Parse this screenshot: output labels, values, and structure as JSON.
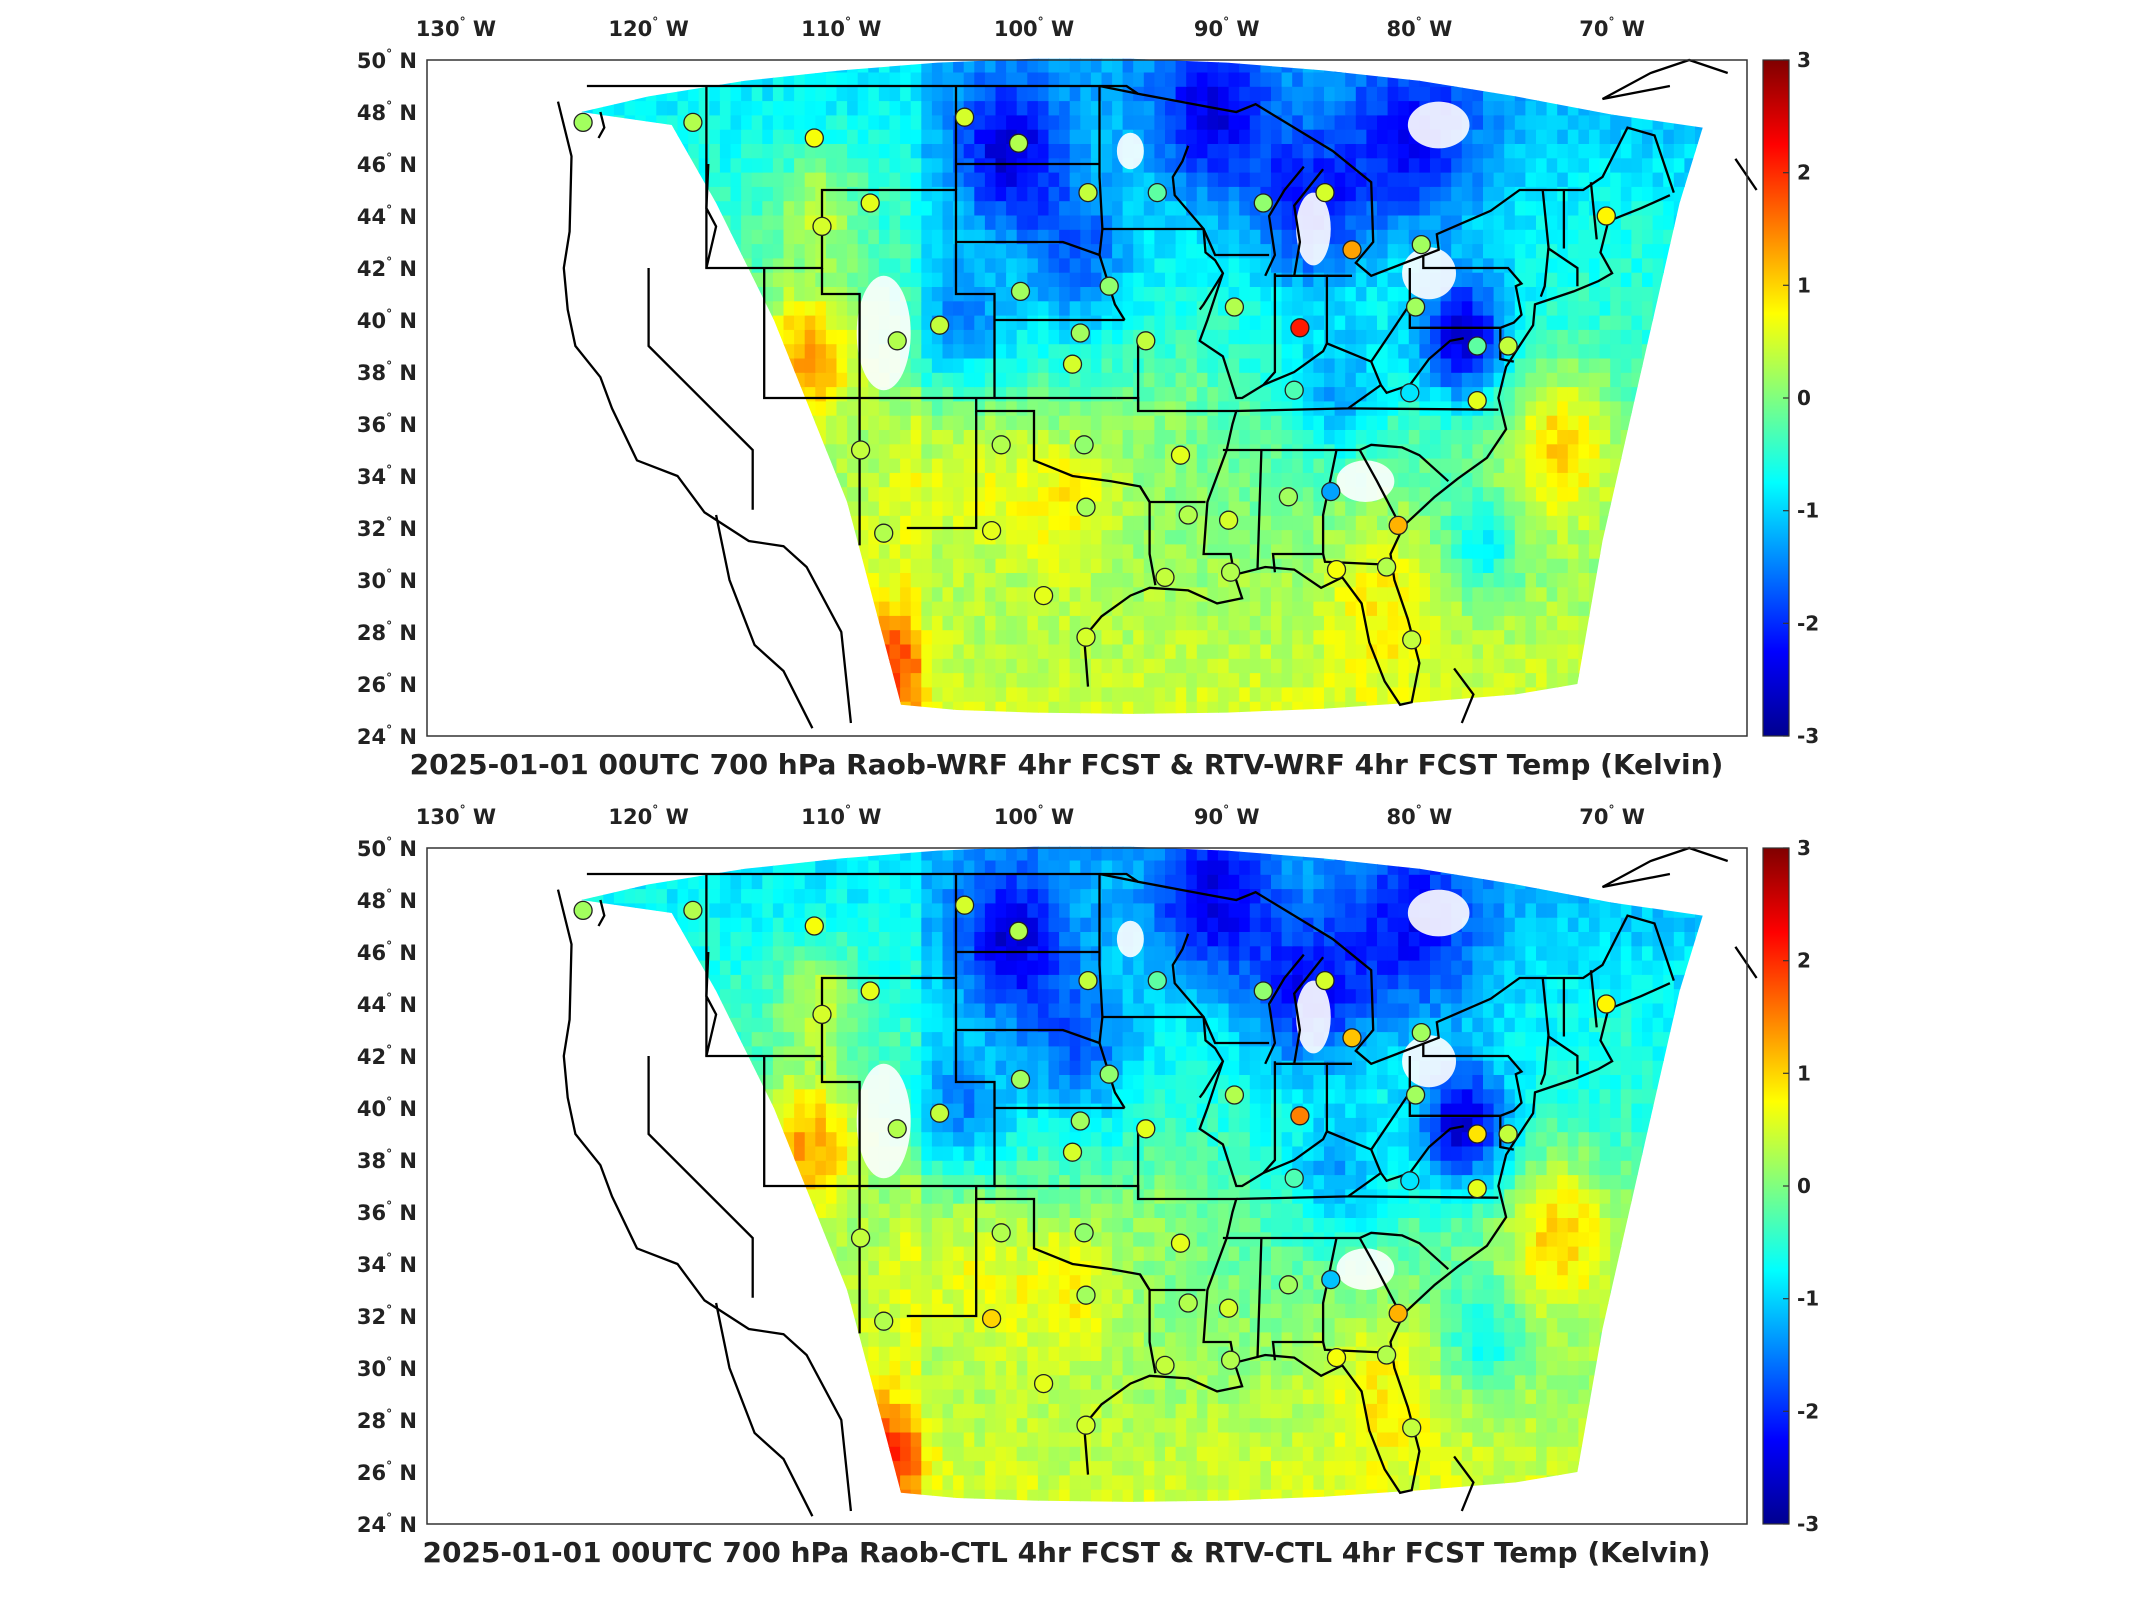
{
  "panels": [
    {
      "title": "2025-01-01 00UTC 700 hPa Raob-WRF 4hr FCST & RTV-WRF 4hr FCST Temp (Kelvin)",
      "stations": [
        {
          "lon": -123.4,
          "lat": 47.6,
          "value": 0.2
        },
        {
          "lon": -117.7,
          "lat": 47.6,
          "value": 0.3
        },
        {
          "lon": -111.4,
          "lat": 47.0,
          "value": 0.7
        },
        {
          "lon": -103.6,
          "lat": 47.8,
          "value": 0.5
        },
        {
          "lon": -100.8,
          "lat": 46.8,
          "value": 0.3
        },
        {
          "lon": -93.6,
          "lat": 44.9,
          "value": -0.2
        },
        {
          "lon": -108.5,
          "lat": 44.5,
          "value": 0.6
        },
        {
          "lon": -97.2,
          "lat": 44.9,
          "value": 0.4
        },
        {
          "lon": -84.9,
          "lat": 44.9,
          "value": 0.5
        },
        {
          "lon": -88.1,
          "lat": 44.5,
          "value": 0.1
        },
        {
          "lon": -83.5,
          "lat": 42.7,
          "value": 1.3
        },
        {
          "lon": -79.9,
          "lat": 42.9,
          "value": 0.2
        },
        {
          "lon": -70.3,
          "lat": 44.0,
          "value": 0.8
        },
        {
          "lon": -111.0,
          "lat": 43.6,
          "value": 0.5
        },
        {
          "lon": -100.7,
          "lat": 41.1,
          "value": 0.2
        },
        {
          "lon": -96.1,
          "lat": 41.3,
          "value": 0.1
        },
        {
          "lon": -89.6,
          "lat": 40.5,
          "value": 0.3
        },
        {
          "lon": -86.2,
          "lat": 39.7,
          "value": 2.1
        },
        {
          "lon": -80.2,
          "lat": 40.5,
          "value": 0.2
        },
        {
          "lon": -77.0,
          "lat": 39.0,
          "value": -0.2
        },
        {
          "lon": -75.4,
          "lat": 39.0,
          "value": 0.4
        },
        {
          "lon": -107.1,
          "lat": 39.2,
          "value": 0.3
        },
        {
          "lon": -104.9,
          "lat": 39.8,
          "value": 0.4
        },
        {
          "lon": -97.6,
          "lat": 39.5,
          "value": 0.2
        },
        {
          "lon": -94.2,
          "lat": 39.2,
          "value": 0.4
        },
        {
          "lon": -98.0,
          "lat": 38.3,
          "value": 0.5
        },
        {
          "lon": -86.5,
          "lat": 37.3,
          "value": -0.3
        },
        {
          "lon": -80.5,
          "lat": 37.2,
          "value": -0.9
        },
        {
          "lon": -77.0,
          "lat": 36.9,
          "value": 0.6
        },
        {
          "lon": -109.0,
          "lat": 35.0,
          "value": 0.4
        },
        {
          "lon": -101.7,
          "lat": 35.2,
          "value": 0.3
        },
        {
          "lon": -97.4,
          "lat": 35.2,
          "value": 0.1
        },
        {
          "lon": -92.4,
          "lat": 34.8,
          "value": 0.6
        },
        {
          "lon": -86.8,
          "lat": 33.2,
          "value": 0.2
        },
        {
          "lon": -84.6,
          "lat": 33.4,
          "value": -1.3
        },
        {
          "lon": -81.1,
          "lat": 32.1,
          "value": 1.2
        },
        {
          "lon": -107.8,
          "lat": 31.8,
          "value": 0.3
        },
        {
          "lon": -102.2,
          "lat": 31.9,
          "value": 0.6
        },
        {
          "lon": -97.3,
          "lat": 32.8,
          "value": 0.2
        },
        {
          "lon": -92.0,
          "lat": 32.5,
          "value": 0.3
        },
        {
          "lon": -89.9,
          "lat": 32.3,
          "value": 0.5
        },
        {
          "lon": -93.2,
          "lat": 30.1,
          "value": 0.4
        },
        {
          "lon": -89.8,
          "lat": 30.3,
          "value": 0.3
        },
        {
          "lon": -84.3,
          "lat": 30.4,
          "value": 0.7
        },
        {
          "lon": -81.7,
          "lat": 30.5,
          "value": 0.3
        },
        {
          "lon": -99.5,
          "lat": 29.4,
          "value": 0.6
        },
        {
          "lon": -97.3,
          "lat": 27.8,
          "value": 0.5
        },
        {
          "lon": -80.4,
          "lat": 27.7,
          "value": 0.4
        }
      ]
    },
    {
      "title": "2025-01-01 00UTC 700 hPa Raob-CTL 4hr FCST & RTV-CTL 4hr FCST Temp (Kelvin)",
      "stations": [
        {
          "lon": -123.4,
          "lat": 47.6,
          "value": 0.2
        },
        {
          "lon": -117.7,
          "lat": 47.6,
          "value": 0.3
        },
        {
          "lon": -111.4,
          "lat": 47.0,
          "value": 0.7
        },
        {
          "lon": -103.6,
          "lat": 47.8,
          "value": 0.5
        },
        {
          "lon": -100.8,
          "lat": 46.8,
          "value": 0.3
        },
        {
          "lon": -93.6,
          "lat": 44.9,
          "value": -0.2
        },
        {
          "lon": -108.5,
          "lat": 44.5,
          "value": 0.6
        },
        {
          "lon": -97.2,
          "lat": 44.9,
          "value": 0.4
        },
        {
          "lon": -84.9,
          "lat": 44.9,
          "value": 0.5
        },
        {
          "lon": -88.1,
          "lat": 44.5,
          "value": 0.1
        },
        {
          "lon": -83.5,
          "lat": 42.7,
          "value": 1.1
        },
        {
          "lon": -79.9,
          "lat": 42.9,
          "value": 0.2
        },
        {
          "lon": -70.3,
          "lat": 44.0,
          "value": 0.8
        },
        {
          "lon": -111.0,
          "lat": 43.6,
          "value": 0.5
        },
        {
          "lon": -100.7,
          "lat": 41.1,
          "value": 0.2
        },
        {
          "lon": -96.1,
          "lat": 41.3,
          "value": 0.1
        },
        {
          "lon": -89.6,
          "lat": 40.5,
          "value": 0.3
        },
        {
          "lon": -86.2,
          "lat": 39.7,
          "value": 1.5
        },
        {
          "lon": -80.2,
          "lat": 40.5,
          "value": 0.2
        },
        {
          "lon": -77.0,
          "lat": 39.0,
          "value": 0.9
        },
        {
          "lon": -75.4,
          "lat": 39.0,
          "value": 0.4
        },
        {
          "lon": -107.1,
          "lat": 39.2,
          "value": 0.3
        },
        {
          "lon": -104.9,
          "lat": 39.8,
          "value": 0.4
        },
        {
          "lon": -97.6,
          "lat": 39.5,
          "value": 0.2
        },
        {
          "lon": -94.2,
          "lat": 39.2,
          "value": 0.6
        },
        {
          "lon": -98.0,
          "lat": 38.3,
          "value": 0.5
        },
        {
          "lon": -86.5,
          "lat": 37.3,
          "value": -0.3
        },
        {
          "lon": -80.5,
          "lat": 37.2,
          "value": -0.9
        },
        {
          "lon": -77.0,
          "lat": 36.9,
          "value": 0.6
        },
        {
          "lon": -109.0,
          "lat": 35.0,
          "value": 0.4
        },
        {
          "lon": -101.7,
          "lat": 35.2,
          "value": 0.3
        },
        {
          "lon": -97.4,
          "lat": 35.2,
          "value": 0.1
        },
        {
          "lon": -92.4,
          "lat": 34.8,
          "value": 0.6
        },
        {
          "lon": -86.8,
          "lat": 33.2,
          "value": 0.2
        },
        {
          "lon": -84.6,
          "lat": 33.4,
          "value": -1.1
        },
        {
          "lon": -81.1,
          "lat": 32.1,
          "value": 1.2
        },
        {
          "lon": -107.8,
          "lat": 31.8,
          "value": 0.3
        },
        {
          "lon": -102.2,
          "lat": 31.9,
          "value": 1.0
        },
        {
          "lon": -97.3,
          "lat": 32.8,
          "value": 0.2
        },
        {
          "lon": -92.0,
          "lat": 32.5,
          "value": 0.3
        },
        {
          "lon": -89.9,
          "lat": 32.3,
          "value": 0.5
        },
        {
          "lon": -93.2,
          "lat": 30.1,
          "value": 0.4
        },
        {
          "lon": -89.8,
          "lat": 30.3,
          "value": 0.3
        },
        {
          "lon": -84.3,
          "lat": 30.4,
          "value": 0.7
        },
        {
          "lon": -81.7,
          "lat": 30.5,
          "value": 0.3
        },
        {
          "lon": -99.5,
          "lat": 29.4,
          "value": 0.6
        },
        {
          "lon": -97.3,
          "lat": 27.8,
          "value": 0.5
        },
        {
          "lon": -80.4,
          "lat": 27.7,
          "value": 0.4
        }
      ]
    }
  ],
  "lon_ticks": [
    {
      "value": -130,
      "label": "130",
      "hemi": "W"
    },
    {
      "value": -120,
      "label": "120",
      "hemi": "W"
    },
    {
      "value": -110,
      "label": "110",
      "hemi": "W"
    },
    {
      "value": -100,
      "label": "100",
      "hemi": "W"
    },
    {
      "value": -90,
      "label": "90",
      "hemi": "W"
    },
    {
      "value": -80,
      "label": "80",
      "hemi": "W"
    },
    {
      "value": -70,
      "label": "70",
      "hemi": "W"
    }
  ],
  "lat_ticks": [
    {
      "value": 50,
      "label": "50",
      "hemi": "N"
    },
    {
      "value": 48,
      "label": "48",
      "hemi": "N"
    },
    {
      "value": 46,
      "label": "46",
      "hemi": "N"
    },
    {
      "value": 44,
      "label": "44",
      "hemi": "N"
    },
    {
      "value": 42,
      "label": "42",
      "hemi": "N"
    },
    {
      "value": 40,
      "label": "40",
      "hemi": "N"
    },
    {
      "value": 38,
      "label": "38",
      "hemi": "N"
    },
    {
      "value": 36,
      "label": "36",
      "hemi": "N"
    },
    {
      "value": 34,
      "label": "34",
      "hemi": "N"
    },
    {
      "value": 32,
      "label": "32",
      "hemi": "N"
    },
    {
      "value": 30,
      "label": "30",
      "hemi": "N"
    },
    {
      "value": 28,
      "label": "28",
      "hemi": "N"
    },
    {
      "value": 26,
      "label": "26",
      "hemi": "N"
    },
    {
      "value": 24,
      "label": "24",
      "hemi": "N"
    }
  ],
  "colorbar": {
    "min": -3,
    "max": 3,
    "ticks": [
      "3",
      "2",
      "1",
      "0",
      "-1",
      "-2",
      "-3"
    ],
    "colormap": "jet"
  },
  "colors": {
    "state_lines": "#000000",
    "missing": "#ffffff",
    "axes": "#333333"
  }
}
